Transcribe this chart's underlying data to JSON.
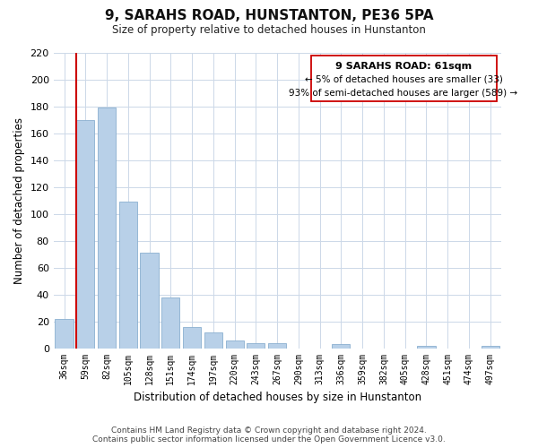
{
  "title": "9, SARAHS ROAD, HUNSTANTON, PE36 5PA",
  "subtitle": "Size of property relative to detached houses in Hunstanton",
  "xlabel": "Distribution of detached houses by size in Hunstanton",
  "ylabel": "Number of detached properties",
  "bar_labels": [
    "36sqm",
    "59sqm",
    "82sqm",
    "105sqm",
    "128sqm",
    "151sqm",
    "174sqm",
    "197sqm",
    "220sqm",
    "243sqm",
    "267sqm",
    "290sqm",
    "313sqm",
    "336sqm",
    "359sqm",
    "382sqm",
    "405sqm",
    "428sqm",
    "451sqm",
    "474sqm",
    "497sqm"
  ],
  "bar_values": [
    22,
    170,
    179,
    109,
    71,
    38,
    16,
    12,
    6,
    4,
    4,
    0,
    0,
    3,
    0,
    0,
    0,
    2,
    0,
    0,
    2
  ],
  "bar_color": "#b8d0e8",
  "bar_edge_color": "#8ab0d0",
  "highlight_bar_idx": 1,
  "highlight_color": "#cc0000",
  "ylim": [
    0,
    220
  ],
  "yticks": [
    0,
    20,
    40,
    60,
    80,
    100,
    120,
    140,
    160,
    180,
    200,
    220
  ],
  "annotation_title": "9 SARAHS ROAD: 61sqm",
  "annotation_line1": "← 5% of detached houses are smaller (33)",
  "annotation_line2": "93% of semi-detached houses are larger (589) →",
  "footer_line1": "Contains HM Land Registry data © Crown copyright and database right 2024.",
  "footer_line2": "Contains public sector information licensed under the Open Government Licence v3.0.",
  "bg_color": "#ffffff",
  "grid_color": "#ccd8e8",
  "annotation_box_edge": "#cc0000"
}
